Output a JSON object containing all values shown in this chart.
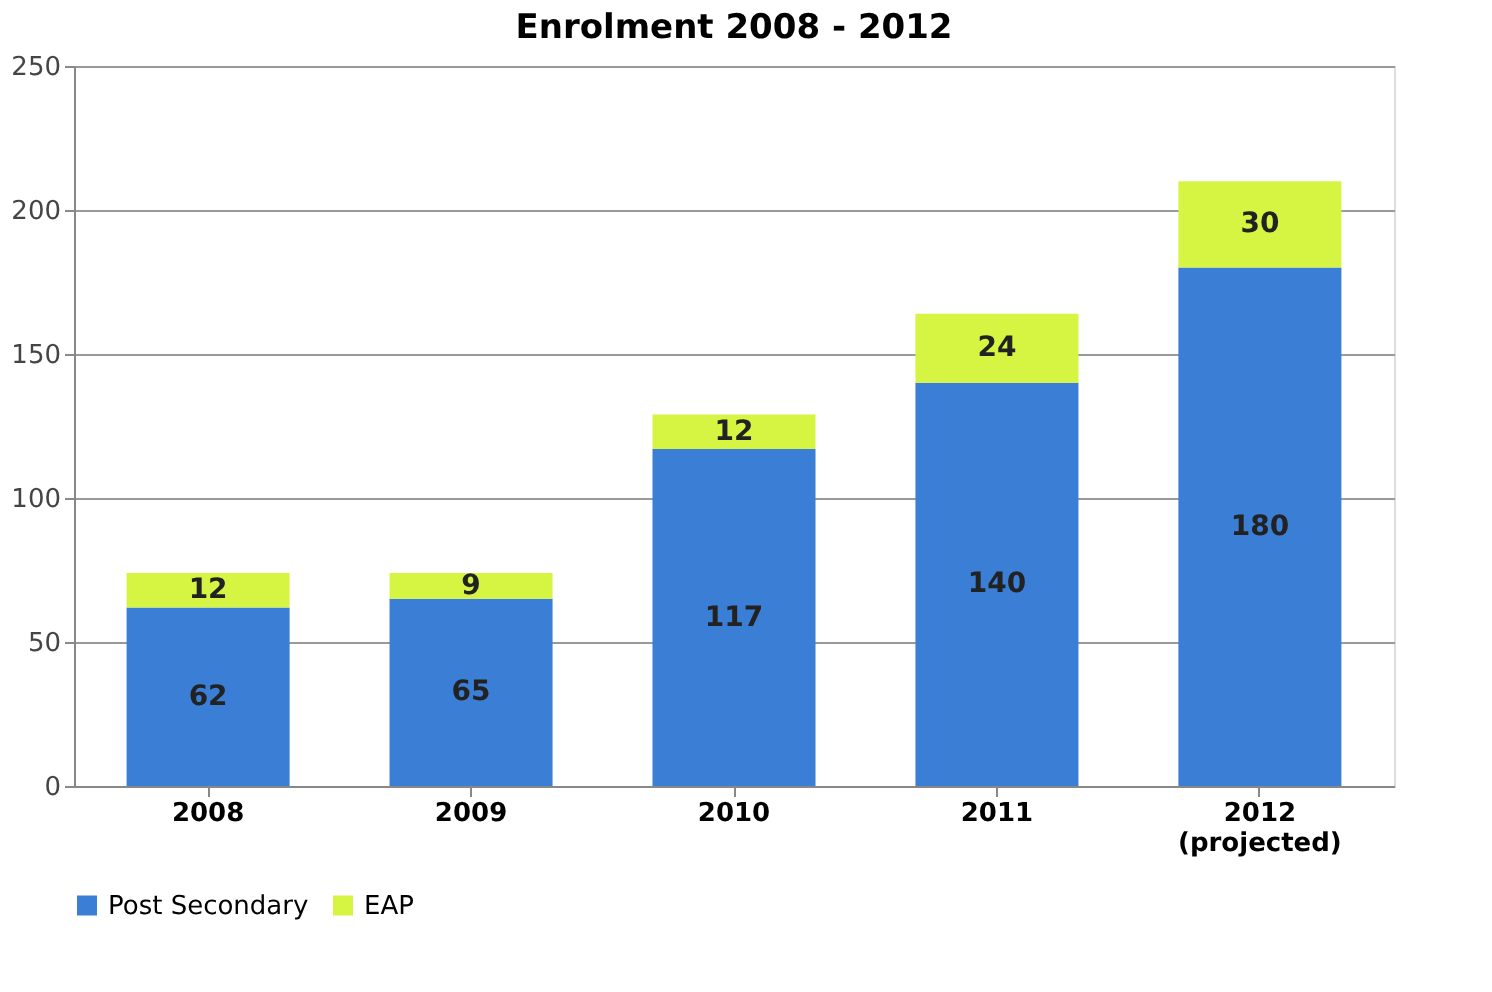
{
  "chart_data": {
    "type": "bar",
    "title": "Enrolment 2008 - 2012",
    "categories": [
      "2008",
      "2009",
      "2010",
      "2011",
      "2012\n(projected)"
    ],
    "series": [
      {
        "name": "Post Secondary",
        "color": "#3a7fd5",
        "values": [
          62,
          65,
          117,
          140,
          180
        ]
      },
      {
        "name": "EAP",
        "color": "#d6f542",
        "values": [
          12,
          9,
          12,
          24,
          30
        ]
      }
    ],
    "stacked": true,
    "ylim": [
      0,
      250
    ],
    "yticks": [
      0,
      50,
      100,
      150,
      200,
      250
    ],
    "grid": "y",
    "legend": "bottom",
    "data_labels": true
  }
}
